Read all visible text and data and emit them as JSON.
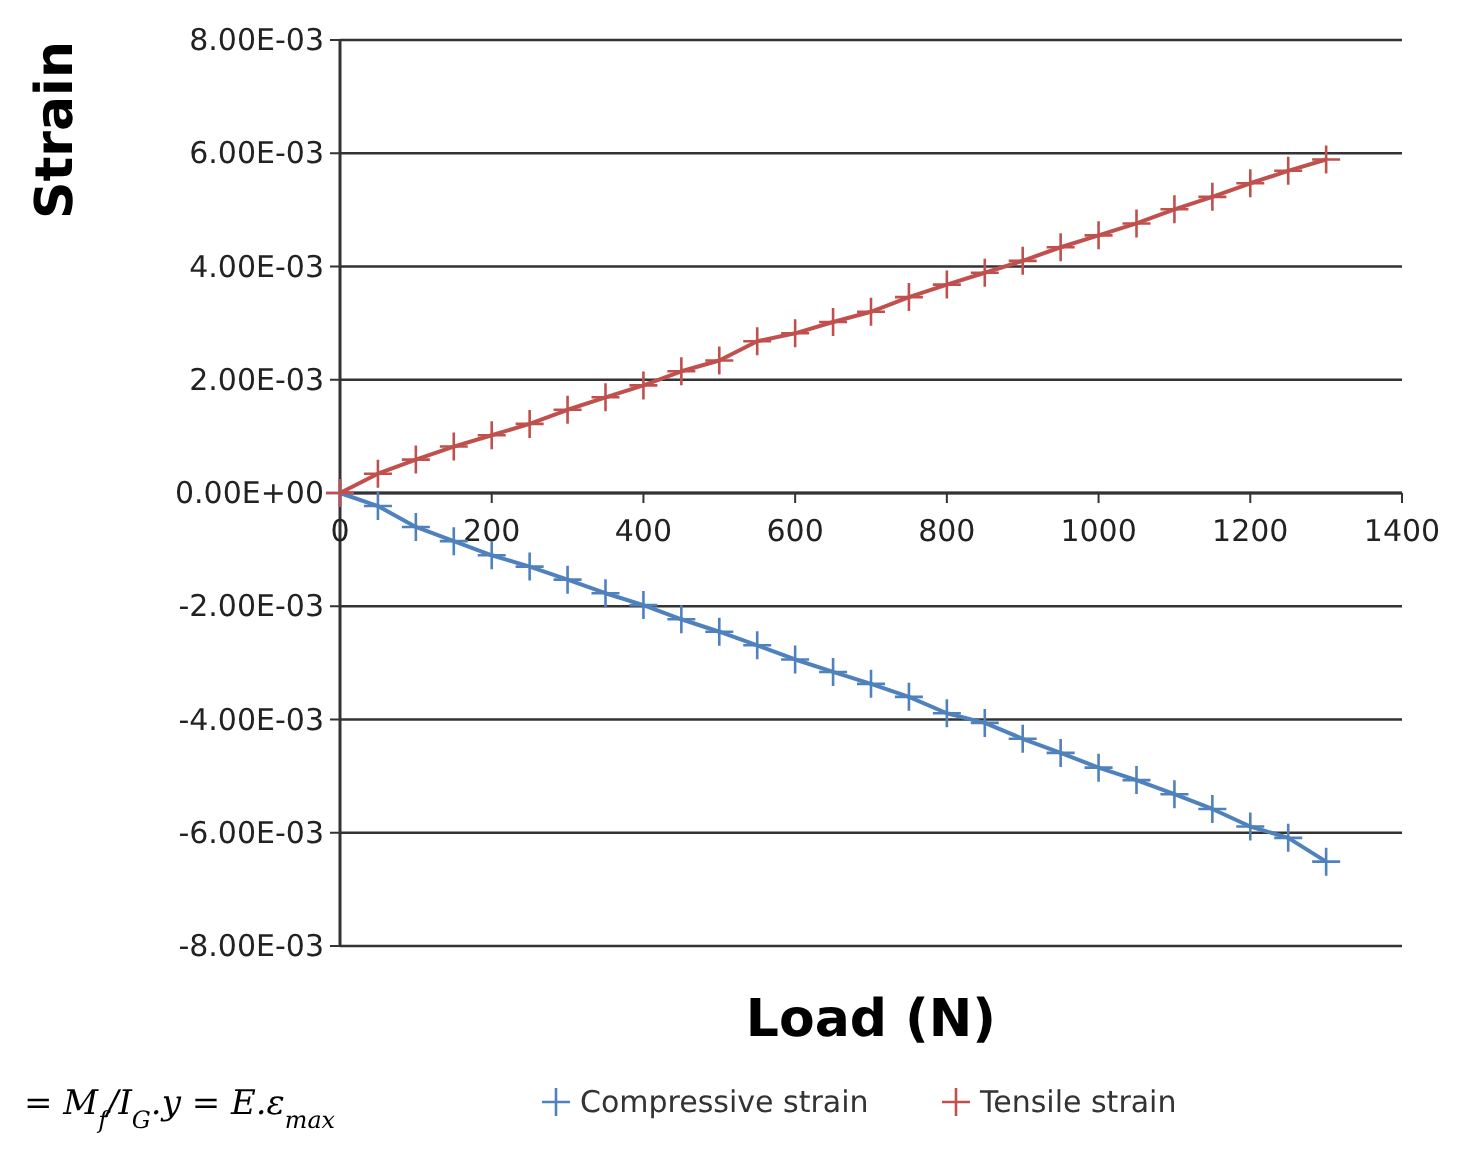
{
  "chart_data": {
    "type": "line",
    "xlabel": "Load (N)",
    "ylabel": "Strain",
    "x": [
      0,
      50,
      100,
      150,
      200,
      250,
      300,
      350,
      400,
      450,
      500,
      550,
      600,
      650,
      700,
      750,
      800,
      850,
      900,
      950,
      1000,
      1050,
      1100,
      1150,
      1200,
      1250,
      1300
    ],
    "series": [
      {
        "name": "Compressive strain",
        "color": "#4f81bd",
        "values": [
          0,
          -0.00023,
          -0.0006,
          -0.00085,
          -0.0011,
          -0.0013,
          -0.00153,
          -0.00177,
          -0.00198,
          -0.00223,
          -0.00245,
          -0.00269,
          -0.00294,
          -0.00316,
          -0.00337,
          -0.0036,
          -0.00389,
          -0.00406,
          -0.00434,
          -0.00459,
          -0.00485,
          -0.00507,
          -0.00532,
          -0.00558,
          -0.00589,
          -0.00609,
          -0.00651
        ]
      },
      {
        "name": "Tensile strain",
        "color": "#c0504d",
        "values": [
          0,
          0.00034,
          0.00059,
          0.00082,
          0.00102,
          0.00122,
          0.00147,
          0.00169,
          0.0019,
          0.00215,
          0.00234,
          0.00268,
          0.00282,
          0.00302,
          0.0032,
          0.00346,
          0.00368,
          0.00389,
          0.0041,
          0.00434,
          0.00455,
          0.00476,
          0.00501,
          0.00523,
          0.00547,
          0.00569,
          0.00589
        ]
      }
    ],
    "xlim": [
      0,
      1400
    ],
    "xticks": [
      0,
      200,
      400,
      600,
      800,
      1000,
      1200,
      1400
    ],
    "ylim": [
      -0.008,
      0.008
    ],
    "yticks": [
      {
        "value": -0.008,
        "label": "-8.00E-03"
      },
      {
        "value": -0.006,
        "label": "-6.00E-03"
      },
      {
        "value": -0.004,
        "label": "-4.00E-03"
      },
      {
        "value": -0.002,
        "label": "-2.00E-03"
      },
      {
        "value": 0,
        "label": "0.00E+00"
      },
      {
        "value": 0.002,
        "label": "2.00E-03"
      },
      {
        "value": 0.004,
        "label": "4.00E-03"
      },
      {
        "value": 0.006,
        "label": "6.00E-03"
      },
      {
        "value": 0.008,
        "label": "8.00E-03"
      }
    ],
    "grid": "y",
    "legend": "bottom",
    "marker": "cross",
    "line_style": "solid",
    "annotations": [
      "= M$_{f}$/I$_{G}$.y = E.ε$_{max}$"
    ]
  }
}
